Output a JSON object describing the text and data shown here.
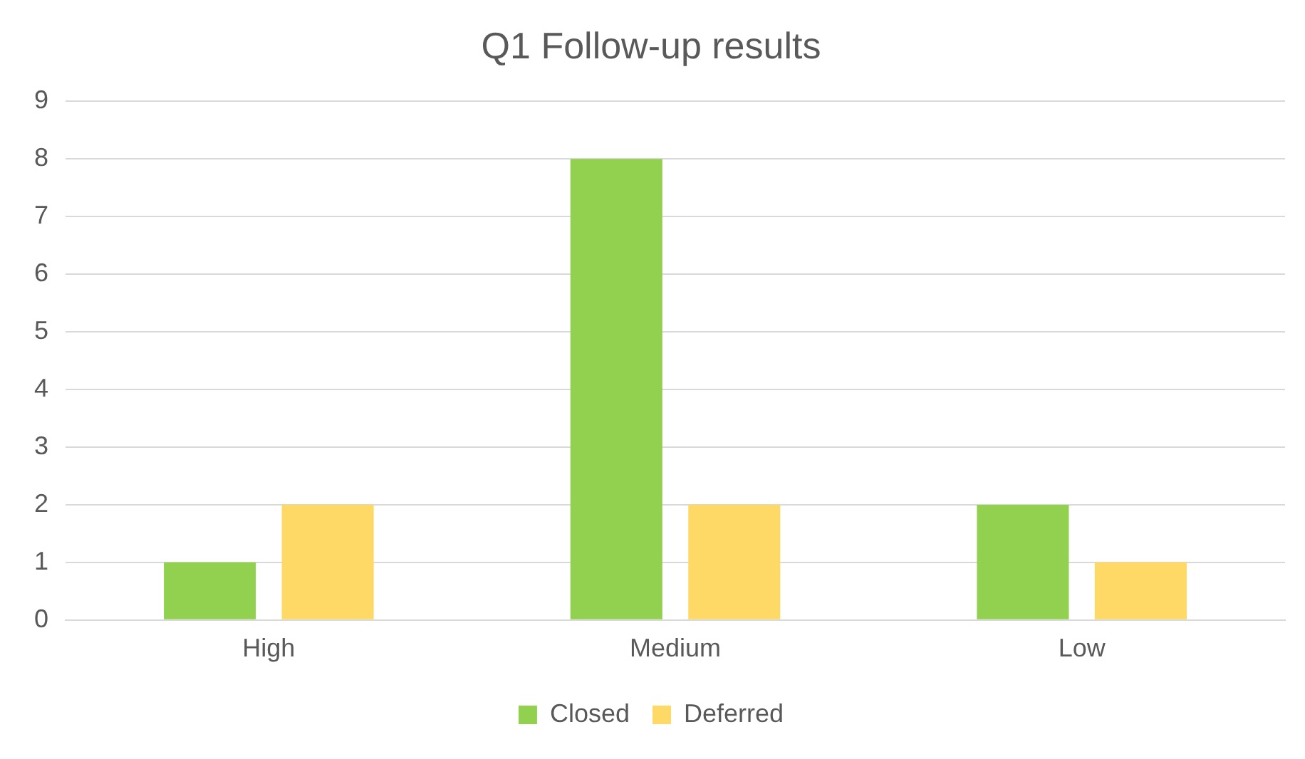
{
  "chart_data": {
    "type": "bar",
    "title": "Q1 Follow-up results",
    "categories": [
      "High",
      "Medium",
      "Low"
    ],
    "series": [
      {
        "name": "Closed",
        "color": "#92d050",
        "values": [
          1,
          8,
          2
        ]
      },
      {
        "name": "Deferred",
        "color": "#ffd966",
        "values": [
          2,
          2,
          1
        ]
      }
    ],
    "ylim": [
      0,
      9
    ],
    "yticks": [
      0,
      1,
      2,
      3,
      4,
      5,
      6,
      7,
      8,
      9
    ],
    "grid": "y",
    "legend": "bottom"
  }
}
